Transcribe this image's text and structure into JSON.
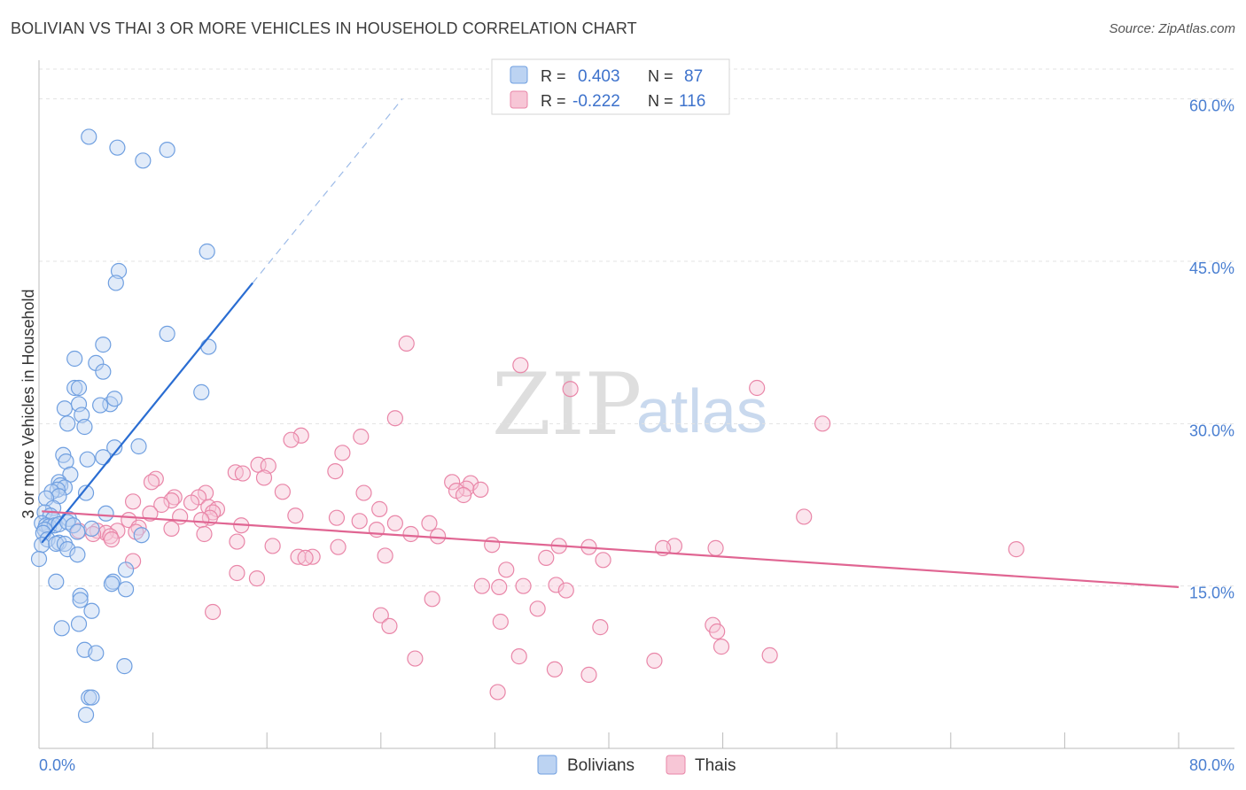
{
  "header": {
    "title": "BOLIVIAN VS THAI 3 OR MORE VEHICLES IN HOUSEHOLD CORRELATION CHART",
    "source": "Source: ZipAtlas.com"
  },
  "watermark": {
    "zip": "ZIP",
    "atlas": "atlas"
  },
  "colors": {
    "bolivian_fill": "#bcd3f2",
    "bolivian_stroke": "#6f9fe0",
    "bolivian_line": "#2a6dd2",
    "thai_fill": "#f7c6d6",
    "thai_stroke": "#e986a8",
    "thai_line": "#e06592",
    "grid": "#e3e3e3",
    "tick_text": "#4a7fd1"
  },
  "legend": {
    "rows": [
      {
        "r_label": "R =",
        "r_value": "0.403",
        "n_label": "N =",
        "n_value": "87"
      },
      {
        "r_label": "R =",
        "r_value": "-0.222",
        "n_label": "N =",
        "n_value": "116"
      }
    ]
  },
  "chart_data": {
    "type": "scatter",
    "title": "BOLIVIAN VS THAI 3 OR MORE VEHICLES IN HOUSEHOLD CORRELATION CHART",
    "xlabel": "",
    "ylabel": "3 or more Vehicles in Household",
    "xlim": [
      0,
      80
    ],
    "ylim": [
      0,
      63
    ],
    "x_tick_labels": [
      "0.0%",
      "80.0%"
    ],
    "y_ticks": [
      15,
      30,
      45,
      60
    ],
    "y_tick_labels": [
      "15.0%",
      "30.0%",
      "45.0%",
      "60.0%"
    ],
    "legend_position": "bottom-center",
    "series": [
      {
        "name": "Bolivians",
        "r": 0.403,
        "n": 87,
        "trend": {
          "x0": 0.2,
          "y0": 19.0,
          "x1": 15.0,
          "y1": 43.0,
          "x_dash_end": 25.5,
          "y_dash_end": 60.0
        },
        "points": [
          [
            3.5,
            56.5
          ],
          [
            5.5,
            55.5
          ],
          [
            7.3,
            54.3
          ],
          [
            9.0,
            55.3
          ],
          [
            11.8,
            45.9
          ],
          [
            5.6,
            44.1
          ],
          [
            5.4,
            43.0
          ],
          [
            9.0,
            38.3
          ],
          [
            11.9,
            37.1
          ],
          [
            4.5,
            37.3
          ],
          [
            2.5,
            36.0
          ],
          [
            4.0,
            35.6
          ],
          [
            4.5,
            34.8
          ],
          [
            11.4,
            32.9
          ],
          [
            2.5,
            33.3
          ],
          [
            2.8,
            33.3
          ],
          [
            5.0,
            31.8
          ],
          [
            5.3,
            32.3
          ],
          [
            4.3,
            31.7
          ],
          [
            1.8,
            31.4
          ],
          [
            2.8,
            31.8
          ],
          [
            3.0,
            30.8
          ],
          [
            2.0,
            30.0
          ],
          [
            3.2,
            29.7
          ],
          [
            7.0,
            27.9
          ],
          [
            5.3,
            27.8
          ],
          [
            1.7,
            27.1
          ],
          [
            3.4,
            26.7
          ],
          [
            1.9,
            26.5
          ],
          [
            4.5,
            26.9
          ],
          [
            2.2,
            25.3
          ],
          [
            1.4,
            24.6
          ],
          [
            1.5,
            24.3
          ],
          [
            1.8,
            24.1
          ],
          [
            1.3,
            23.9
          ],
          [
            0.9,
            23.7
          ],
          [
            3.3,
            23.6
          ],
          [
            1.4,
            23.3
          ],
          [
            0.5,
            23.1
          ],
          [
            1.0,
            22.2
          ],
          [
            0.4,
            21.8
          ],
          [
            0.8,
            21.5
          ],
          [
            1.0,
            21.2
          ],
          [
            2.1,
            21.2
          ],
          [
            4.7,
            21.7
          ],
          [
            0.2,
            20.8
          ],
          [
            0.5,
            20.6
          ],
          [
            0.7,
            20.5
          ],
          [
            1.1,
            20.6
          ],
          [
            1.4,
            20.7
          ],
          [
            2.0,
            20.9
          ],
          [
            2.4,
            20.6
          ],
          [
            0.4,
            20.2
          ],
          [
            3.7,
            20.3
          ],
          [
            2.7,
            20.0
          ],
          [
            0.3,
            19.9
          ],
          [
            7.2,
            19.7
          ],
          [
            0.6,
            19.3
          ],
          [
            1.4,
            19.0
          ],
          [
            0.2,
            18.8
          ],
          [
            1.2,
            18.9
          ],
          [
            1.8,
            18.9
          ],
          [
            2.0,
            18.4
          ],
          [
            2.7,
            17.9
          ],
          [
            0.0,
            17.5
          ],
          [
            6.1,
            16.5
          ],
          [
            5.2,
            15.4
          ],
          [
            1.2,
            15.4
          ],
          [
            5.1,
            15.2
          ],
          [
            6.1,
            14.7
          ],
          [
            2.9,
            14.1
          ],
          [
            2.9,
            13.7
          ],
          [
            3.7,
            12.7
          ],
          [
            1.6,
            11.1
          ],
          [
            2.8,
            11.5
          ],
          [
            3.2,
            9.1
          ],
          [
            4.0,
            8.8
          ],
          [
            6.0,
            7.6
          ],
          [
            3.5,
            4.7
          ],
          [
            3.7,
            4.7
          ],
          [
            3.3,
            3.1
          ]
        ]
      },
      {
        "name": "Thais",
        "r": -0.222,
        "n": 116,
        "trend": {
          "x0": 0.2,
          "y0": 21.9,
          "x1": 80.0,
          "y1": 14.9
        },
        "points": [
          [
            25.8,
            37.4
          ],
          [
            33.8,
            35.4
          ],
          [
            37.3,
            33.2
          ],
          [
            50.4,
            33.3
          ],
          [
            55.0,
            30.0
          ],
          [
            25.0,
            30.5
          ],
          [
            18.4,
            28.9
          ],
          [
            22.6,
            28.8
          ],
          [
            17.7,
            28.5
          ],
          [
            21.3,
            27.3
          ],
          [
            20.8,
            25.6
          ],
          [
            13.8,
            25.5
          ],
          [
            15.4,
            26.2
          ],
          [
            16.1,
            26.1
          ],
          [
            15.8,
            25.0
          ],
          [
            14.3,
            25.4
          ],
          [
            8.2,
            24.9
          ],
          [
            7.9,
            24.6
          ],
          [
            29.0,
            24.6
          ],
          [
            30.3,
            24.5
          ],
          [
            30.0,
            24.0
          ],
          [
            29.3,
            23.8
          ],
          [
            29.8,
            23.4
          ],
          [
            31.0,
            23.9
          ],
          [
            17.1,
            23.7
          ],
          [
            22.8,
            23.6
          ],
          [
            11.7,
            23.6
          ],
          [
            9.5,
            23.2
          ],
          [
            11.2,
            23.2
          ],
          [
            9.3,
            22.9
          ],
          [
            8.6,
            22.5
          ],
          [
            6.6,
            22.8
          ],
          [
            10.7,
            22.7
          ],
          [
            11.9,
            22.3
          ],
          [
            23.9,
            22.1
          ],
          [
            12.5,
            22.1
          ],
          [
            12.2,
            21.8
          ],
          [
            7.8,
            21.7
          ],
          [
            18.0,
            21.5
          ],
          [
            20.9,
            21.3
          ],
          [
            9.9,
            21.4
          ],
          [
            53.7,
            21.4
          ],
          [
            12.0,
            21.3
          ],
          [
            11.4,
            21.1
          ],
          [
            6.3,
            21.1
          ],
          [
            14.2,
            20.6
          ],
          [
            25.0,
            20.8
          ],
          [
            27.4,
            20.8
          ],
          [
            22.5,
            21.0
          ],
          [
            23.7,
            20.2
          ],
          [
            7.0,
            20.4
          ],
          [
            9.3,
            20.3
          ],
          [
            2.8,
            20.1
          ],
          [
            5.5,
            20.1
          ],
          [
            4.1,
            20.1
          ],
          [
            4.7,
            19.9
          ],
          [
            6.8,
            20.0
          ],
          [
            11.6,
            19.8
          ],
          [
            26.1,
            19.8
          ],
          [
            28.0,
            19.6
          ],
          [
            3.8,
            19.8
          ],
          [
            5.0,
            19.6
          ],
          [
            5.1,
            19.3
          ],
          [
            13.9,
            19.1
          ],
          [
            31.8,
            18.8
          ],
          [
            21.0,
            18.6
          ],
          [
            16.4,
            18.7
          ],
          [
            36.5,
            18.7
          ],
          [
            44.6,
            18.7
          ],
          [
            38.6,
            18.6
          ],
          [
            43.8,
            18.5
          ],
          [
            47.5,
            18.5
          ],
          [
            68.6,
            18.4
          ],
          [
            18.2,
            17.7
          ],
          [
            24.3,
            17.8
          ],
          [
            19.2,
            17.7
          ],
          [
            18.7,
            17.6
          ],
          [
            35.6,
            17.6
          ],
          [
            39.6,
            17.4
          ],
          [
            6.6,
            17.3
          ],
          [
            13.9,
            16.2
          ],
          [
            32.8,
            16.5
          ],
          [
            15.3,
            15.7
          ],
          [
            31.1,
            15.0
          ],
          [
            34.0,
            15.0
          ],
          [
            32.3,
            14.9
          ],
          [
            36.3,
            15.1
          ],
          [
            37.0,
            14.6
          ],
          [
            27.6,
            13.8
          ],
          [
            35.0,
            12.9
          ],
          [
            12.2,
            12.6
          ],
          [
            24.0,
            12.3
          ],
          [
            32.4,
            11.7
          ],
          [
            24.6,
            11.3
          ],
          [
            39.4,
            11.2
          ],
          [
            47.3,
            11.4
          ],
          [
            47.6,
            10.8
          ],
          [
            47.9,
            9.4
          ],
          [
            51.3,
            8.6
          ],
          [
            26.4,
            8.3
          ],
          [
            33.7,
            8.5
          ],
          [
            43.2,
            8.1
          ],
          [
            36.2,
            7.3
          ],
          [
            38.6,
            6.8
          ],
          [
            32.2,
            5.2
          ]
        ]
      }
    ]
  },
  "bottom_legend": {
    "items": [
      "Bolivians",
      "Thais"
    ]
  }
}
